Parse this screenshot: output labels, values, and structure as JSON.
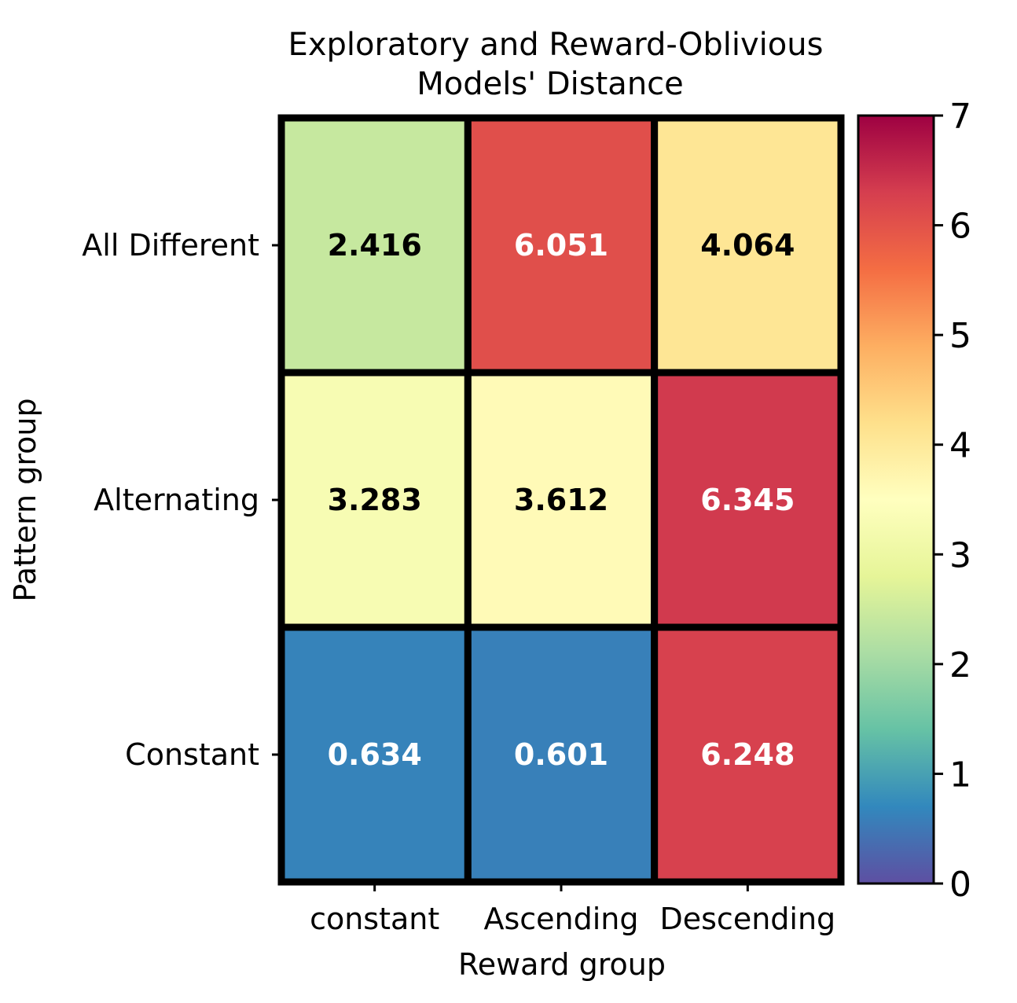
{
  "chart_data": {
    "type": "heatmap",
    "title": [
      "Exploratory and Reward-Oblivious",
      "Models' Distance"
    ],
    "xlabel": "Reward group",
    "ylabel": "Pattern group",
    "x_categories": [
      "constant",
      "Ascending",
      "Descending"
    ],
    "y_categories": [
      "All Different",
      "Alternating",
      "Constant"
    ],
    "values": [
      [
        2.416,
        6.051,
        4.064
      ],
      [
        3.283,
        3.612,
        6.345
      ],
      [
        0.634,
        0.601,
        6.248
      ]
    ],
    "value_labels": [
      [
        "2.416",
        "6.051",
        "4.064"
      ],
      [
        "3.283",
        "3.612",
        "6.345"
      ],
      [
        "0.634",
        "0.601",
        "6.248"
      ]
    ],
    "colorbar": {
      "colormap": "Spectral_r",
      "range": [
        0,
        7
      ],
      "ticks": [
        "0",
        "1",
        "2",
        "3",
        "4",
        "5",
        "6",
        "7"
      ]
    }
  }
}
